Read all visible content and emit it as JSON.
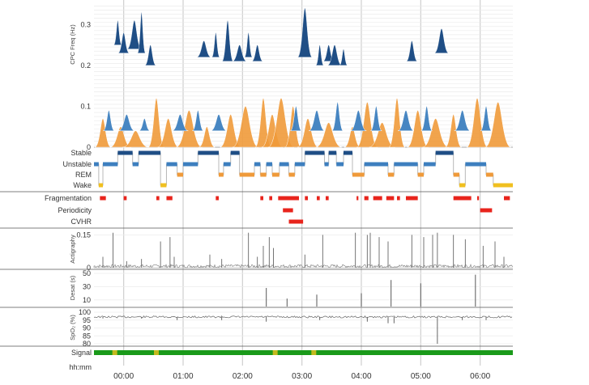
{
  "chart_data": {
    "type": "sleep-study-panel",
    "time_axis": {
      "label": "hh:mm",
      "ticks": [
        "00:00",
        "01:00",
        "02:00",
        "03:00",
        "04:00",
        "05:00",
        "06:00"
      ],
      "range_hours": [
        -0.5,
        6.55
      ]
    },
    "panels": {
      "cpc": {
        "ylabel": "CPC Freq (Hz)",
        "ticks": [
          "0.3",
          "0.2",
          "0.1",
          "0"
        ],
        "tick_values": [
          0.3,
          0.2,
          0.1,
          0
        ],
        "ylim": [
          0,
          0.35
        ],
        "colors": {
          "high": "#1f4e85",
          "low": "#3d7fbf",
          "mid": "#ef9a3a"
        },
        "high_band_peaks": [
          {
            "t": -0.1,
            "f": 0.27,
            "h": 0.06
          },
          {
            "t": 0.0,
            "f": 0.25,
            "h": 0.05
          },
          {
            "t": 0.18,
            "f": 0.26,
            "h": 0.07
          },
          {
            "t": 0.3,
            "f": 0.25,
            "h": 0.1
          },
          {
            "t": 0.45,
            "f": 0.22,
            "h": 0.05
          },
          {
            "t": 1.35,
            "f": 0.24,
            "h": 0.04
          },
          {
            "t": 1.55,
            "f": 0.24,
            "h": 0.06
          },
          {
            "t": 1.75,
            "f": 0.23,
            "h": 0.1
          },
          {
            "t": 1.95,
            "f": 0.23,
            "h": 0.04
          },
          {
            "t": 2.1,
            "f": 0.24,
            "h": 0.06
          },
          {
            "t": 2.25,
            "f": 0.23,
            "h": 0.04
          },
          {
            "t": 3.05,
            "f": 0.24,
            "h": 0.12
          },
          {
            "t": 3.3,
            "f": 0.22,
            "h": 0.05
          },
          {
            "t": 3.45,
            "f": 0.23,
            "h": 0.04
          },
          {
            "t": 3.55,
            "f": 0.22,
            "h": 0.05
          },
          {
            "t": 3.7,
            "f": 0.22,
            "h": 0.04
          },
          {
            "t": 4.85,
            "f": 0.23,
            "h": 0.05
          },
          {
            "t": 5.35,
            "f": 0.25,
            "h": 0.06
          }
        ],
        "mid_band_peaks": [
          {
            "t": -0.35,
            "h": 0.07
          },
          {
            "t": -0.05,
            "h": 0.05
          },
          {
            "t": 0.2,
            "h": 0.04
          },
          {
            "t": 0.55,
            "h": 0.12
          },
          {
            "t": 0.75,
            "h": 0.07
          },
          {
            "t": 1.1,
            "h": 0.09
          },
          {
            "t": 1.4,
            "h": 0.05
          },
          {
            "t": 1.8,
            "h": 0.08
          },
          {
            "t": 2.05,
            "h": 0.1
          },
          {
            "t": 2.35,
            "h": 0.12
          },
          {
            "t": 2.5,
            "h": 0.08
          },
          {
            "t": 2.65,
            "h": 0.12
          },
          {
            "t": 2.85,
            "h": 0.1
          },
          {
            "t": 3.1,
            "h": 0.07
          },
          {
            "t": 3.45,
            "h": 0.06
          },
          {
            "t": 3.85,
            "h": 0.05
          },
          {
            "t": 4.1,
            "h": 0.11
          },
          {
            "t": 4.35,
            "h": 0.06
          },
          {
            "t": 4.6,
            "h": 0.12
          },
          {
            "t": 4.95,
            "h": 0.09
          },
          {
            "t": 5.25,
            "h": 0.07
          },
          {
            "t": 5.55,
            "h": 0.08
          },
          {
            "t": 5.95,
            "h": 0.12
          },
          {
            "t": 6.3,
            "h": 0.11
          }
        ],
        "low_band_peaks": [
          {
            "t": -0.25,
            "h": 0.05
          },
          {
            "t": 0.05,
            "h": 0.04
          },
          {
            "t": 0.35,
            "h": 0.03
          },
          {
            "t": 0.95,
            "h": 0.04
          },
          {
            "t": 1.25,
            "h": 0.05
          },
          {
            "t": 1.6,
            "h": 0.04
          },
          {
            "t": 2.9,
            "h": 0.06
          },
          {
            "t": 3.25,
            "h": 0.05
          },
          {
            "t": 3.6,
            "h": 0.07
          },
          {
            "t": 3.95,
            "h": 0.05
          },
          {
            "t": 4.25,
            "h": 0.06
          },
          {
            "t": 4.75,
            "h": 0.05
          },
          {
            "t": 5.1,
            "h": 0.06
          },
          {
            "t": 5.7,
            "h": 0.05
          },
          {
            "t": 6.1,
            "h": 0.06
          }
        ]
      },
      "stages": {
        "levels": [
          "Stable",
          "Unstable",
          "REM",
          "Wake"
        ],
        "colors": {
          "Stable": "#1f4e85",
          "Unstable": "#3d7fbf",
          "REM": "#ef9a3a",
          "Wake": "#f0c020"
        },
        "segments": [
          {
            "s": -0.5,
            "e": -0.42,
            "stage": "Unstable"
          },
          {
            "s": -0.42,
            "e": -0.35,
            "stage": "Wake"
          },
          {
            "s": -0.35,
            "e": -0.1,
            "stage": "Unstable"
          },
          {
            "s": -0.1,
            "e": 0.15,
            "stage": "Stable"
          },
          {
            "s": 0.15,
            "e": 0.25,
            "stage": "Unstable"
          },
          {
            "s": 0.25,
            "e": 0.62,
            "stage": "Stable"
          },
          {
            "s": 0.62,
            "e": 0.72,
            "stage": "Wake"
          },
          {
            "s": 0.72,
            "e": 0.9,
            "stage": "Unstable"
          },
          {
            "s": 0.9,
            "e": 1.0,
            "stage": "REM"
          },
          {
            "s": 1.0,
            "e": 1.25,
            "stage": "Unstable"
          },
          {
            "s": 1.25,
            "e": 1.6,
            "stage": "Stable"
          },
          {
            "s": 1.6,
            "e": 1.68,
            "stage": "REM"
          },
          {
            "s": 1.68,
            "e": 1.8,
            "stage": "Unstable"
          },
          {
            "s": 1.8,
            "e": 1.95,
            "stage": "Stable"
          },
          {
            "s": 1.95,
            "e": 2.2,
            "stage": "REM"
          },
          {
            "s": 2.2,
            "e": 2.3,
            "stage": "Unstable"
          },
          {
            "s": 2.3,
            "e": 2.4,
            "stage": "REM"
          },
          {
            "s": 2.4,
            "e": 2.5,
            "stage": "Unstable"
          },
          {
            "s": 2.5,
            "e": 2.62,
            "stage": "REM"
          },
          {
            "s": 2.62,
            "e": 2.78,
            "stage": "Unstable"
          },
          {
            "s": 2.78,
            "e": 2.88,
            "stage": "REM"
          },
          {
            "s": 2.88,
            "e": 3.05,
            "stage": "Unstable"
          },
          {
            "s": 3.05,
            "e": 3.38,
            "stage": "Stable"
          },
          {
            "s": 3.38,
            "e": 3.45,
            "stage": "Unstable"
          },
          {
            "s": 3.45,
            "e": 3.58,
            "stage": "Stable"
          },
          {
            "s": 3.58,
            "e": 3.7,
            "stage": "Unstable"
          },
          {
            "s": 3.7,
            "e": 3.85,
            "stage": "Stable"
          },
          {
            "s": 3.85,
            "e": 4.05,
            "stage": "REM"
          },
          {
            "s": 4.05,
            "e": 4.45,
            "stage": "Unstable"
          },
          {
            "s": 4.45,
            "e": 4.55,
            "stage": "REM"
          },
          {
            "s": 4.55,
            "e": 4.95,
            "stage": "Unstable"
          },
          {
            "s": 4.95,
            "e": 5.05,
            "stage": "REM"
          },
          {
            "s": 5.05,
            "e": 5.25,
            "stage": "Unstable"
          },
          {
            "s": 5.25,
            "e": 5.55,
            "stage": "Stable"
          },
          {
            "s": 5.55,
            "e": 5.65,
            "stage": "REM"
          },
          {
            "s": 5.65,
            "e": 5.75,
            "stage": "Wake"
          },
          {
            "s": 5.75,
            "e": 6.1,
            "stage": "Unstable"
          },
          {
            "s": 6.1,
            "e": 6.22,
            "stage": "REM"
          },
          {
            "s": 6.22,
            "e": 6.55,
            "stage": "Wake"
          }
        ]
      },
      "events": {
        "rows": [
          "Fragmentation",
          "Periodicity",
          "CVHR"
        ],
        "color": "#e8241c",
        "intervals": {
          "Fragmentation": [
            [
              -0.4,
              -0.3
            ],
            [
              0.0,
              0.05
            ],
            [
              0.55,
              0.6
            ],
            [
              0.72,
              0.82
            ],
            [
              1.55,
              1.6
            ],
            [
              2.3,
              2.35
            ],
            [
              2.45,
              2.5
            ],
            [
              2.6,
              2.95
            ],
            [
              3.05,
              3.1
            ],
            [
              3.25,
              3.3
            ],
            [
              3.4,
              3.45
            ],
            [
              3.92,
              3.95
            ],
            [
              4.05,
              4.12
            ],
            [
              4.2,
              4.35
            ],
            [
              4.42,
              4.55
            ],
            [
              4.6,
              4.65
            ],
            [
              4.75,
              4.95
            ],
            [
              5.55,
              5.85
            ],
            [
              5.95,
              5.98
            ],
            [
              6.4,
              6.5
            ]
          ],
          "Periodicity": [
            [
              2.68,
              2.85
            ],
            [
              6.0,
              6.2
            ]
          ],
          "CVHR": [
            [
              2.78,
              3.02
            ]
          ]
        }
      },
      "actigraphy": {
        "ylabel": "Actigraphy",
        "ticks": [
          "0.15",
          "0"
        ],
        "tick_values": [
          0.15,
          0
        ],
        "ylim": [
          0,
          0.17
        ],
        "spikes": [
          {
            "t": -0.35,
            "v": 0.05
          },
          {
            "t": -0.18,
            "v": 0.16
          },
          {
            "t": 0.05,
            "v": 0.03
          },
          {
            "t": 0.3,
            "v": 0.04
          },
          {
            "t": 0.62,
            "v": 0.12
          },
          {
            "t": 0.78,
            "v": 0.14
          },
          {
            "t": 0.85,
            "v": 0.05
          },
          {
            "t": 1.45,
            "v": 0.06
          },
          {
            "t": 1.65,
            "v": 0.04
          },
          {
            "t": 2.1,
            "v": 0.16
          },
          {
            "t": 2.25,
            "v": 0.05
          },
          {
            "t": 2.35,
            "v": 0.1
          },
          {
            "t": 2.45,
            "v": 0.14
          },
          {
            "t": 2.52,
            "v": 0.09
          },
          {
            "t": 3.05,
            "v": 0.06
          },
          {
            "t": 3.35,
            "v": 0.15
          },
          {
            "t": 3.9,
            "v": 0.16
          },
          {
            "t": 4.1,
            "v": 0.15
          },
          {
            "t": 4.15,
            "v": 0.16
          },
          {
            "t": 4.3,
            "v": 0.14
          },
          {
            "t": 4.45,
            "v": 0.12
          },
          {
            "t": 4.85,
            "v": 0.15
          },
          {
            "t": 5.05,
            "v": 0.14
          },
          {
            "t": 5.2,
            "v": 0.15
          },
          {
            "t": 5.28,
            "v": 0.16
          },
          {
            "t": 5.55,
            "v": 0.15
          },
          {
            "t": 5.75,
            "v": 0.13
          },
          {
            "t": 6.05,
            "v": 0.1
          },
          {
            "t": 6.25,
            "v": 0.12
          },
          {
            "t": 6.4,
            "v": 0.05
          }
        ]
      },
      "desat": {
        "ylabel": "Desat (s)",
        "ticks": [
          "50",
          "30",
          "10"
        ],
        "tick_values": [
          50,
          30,
          10
        ],
        "ylim": [
          0,
          50
        ],
        "events": [
          {
            "t": 2.4,
            "v": 28
          },
          {
            "t": 2.75,
            "v": 12
          },
          {
            "t": 3.25,
            "v": 18
          },
          {
            "t": 4.0,
            "v": 20
          },
          {
            "t": 4.5,
            "v": 40
          },
          {
            "t": 5.0,
            "v": 35
          },
          {
            "t": 5.92,
            "v": 48
          }
        ]
      },
      "spo2": {
        "ylabel": "SpO₂ (%)",
        "ticks": [
          "100",
          "95",
          "90",
          "85",
          "80"
        ],
        "tick_values": [
          100,
          95,
          90,
          85,
          80
        ],
        "ylim": [
          78,
          100
        ],
        "baseline": 97,
        "dips": [
          {
            "t": -0.35,
            "v": 96
          },
          {
            "t": 0.3,
            "v": 96
          },
          {
            "t": 0.9,
            "v": 95
          },
          {
            "t": 1.65,
            "v": 95
          },
          {
            "t": 2.4,
            "v": 94
          },
          {
            "t": 3.3,
            "v": 95
          },
          {
            "t": 4.1,
            "v": 94
          },
          {
            "t": 4.45,
            "v": 93
          },
          {
            "t": 4.55,
            "v": 93
          },
          {
            "t": 5.28,
            "v": 80
          },
          {
            "t": 5.7,
            "v": 95
          },
          {
            "t": 6.1,
            "v": 95
          }
        ]
      },
      "signal": {
        "label": "Signal",
        "colors": {
          "good": "#1a9a1a",
          "fair": "#e0c020"
        },
        "fair_spots": [
          -0.15,
          0.55,
          2.55,
          3.2
        ]
      }
    }
  }
}
